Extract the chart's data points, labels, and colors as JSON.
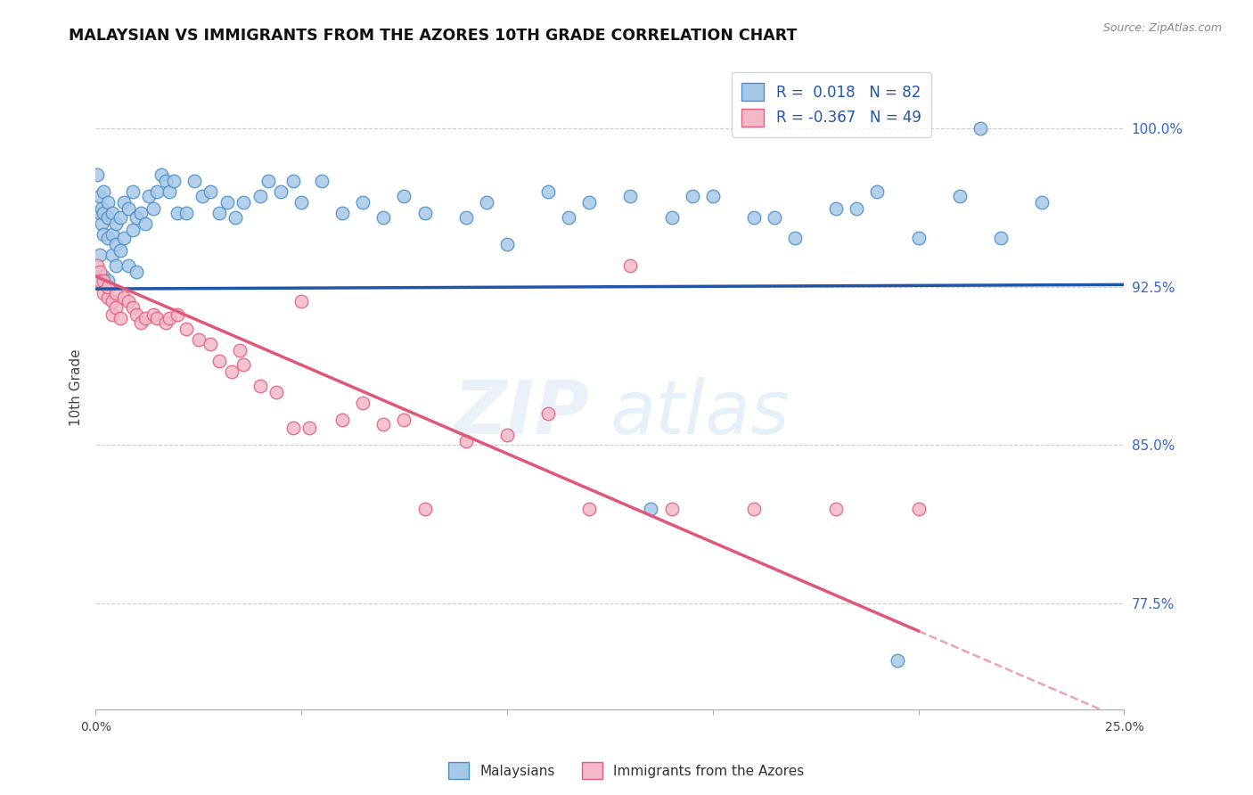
{
  "title": "MALAYSIAN VS IMMIGRANTS FROM THE AZORES 10TH GRADE CORRELATION CHART",
  "source": "Source: ZipAtlas.com",
  "ylabel": "10th Grade",
  "watermark_zip": "ZIP",
  "watermark_atlas": "atlas",
  "legend_malaysians": "Malaysians",
  "legend_azores": "Immigrants from the Azores",
  "R_malaysians": 0.018,
  "N_malaysians": 82,
  "R_azores": -0.367,
  "N_azores": 49,
  "blue_fill": "#a8c8e8",
  "blue_edge": "#4a90c8",
  "pink_fill": "#f4b8c8",
  "pink_edge": "#e06080",
  "line_blue_color": "#2255aa",
  "line_pink_color": "#e05878",
  "ytick_vals": [
    0.775,
    0.85,
    0.925,
    1.0
  ],
  "ytick_labels": [
    "77.5%",
    "85.0%",
    "92.5%",
    "100.0%"
  ],
  "xlim": [
    0.0,
    0.25
  ],
  "ylim": [
    0.725,
    1.03
  ],
  "xtick_vals": [
    0.0,
    0.05,
    0.1,
    0.15,
    0.2,
    0.25
  ],
  "xtick_labels": [
    "0.0%",
    "",
    "",
    "",
    "",
    "25.0%"
  ],
  "malaysians_x": [
    0.0005,
    0.001,
    0.001,
    0.001,
    0.0015,
    0.0015,
    0.002,
    0.002,
    0.002,
    0.002,
    0.003,
    0.003,
    0.003,
    0.003,
    0.004,
    0.004,
    0.004,
    0.005,
    0.005,
    0.005,
    0.006,
    0.006,
    0.007,
    0.007,
    0.008,
    0.008,
    0.009,
    0.009,
    0.01,
    0.01,
    0.011,
    0.012,
    0.013,
    0.014,
    0.015,
    0.016,
    0.017,
    0.018,
    0.019,
    0.02,
    0.022,
    0.024,
    0.026,
    0.028,
    0.03,
    0.032,
    0.034,
    0.036,
    0.04,
    0.042,
    0.045,
    0.048,
    0.05,
    0.055,
    0.06,
    0.065,
    0.07,
    0.075,
    0.08,
    0.09,
    0.095,
    0.1,
    0.11,
    0.12,
    0.13,
    0.14,
    0.15,
    0.16,
    0.17,
    0.18,
    0.19,
    0.2,
    0.21,
    0.22,
    0.23,
    0.115,
    0.135,
    0.145,
    0.165,
    0.185,
    0.195,
    0.215
  ],
  "malaysians_y": [
    0.978,
    0.968,
    0.96,
    0.94,
    0.962,
    0.955,
    0.97,
    0.96,
    0.95,
    0.93,
    0.965,
    0.958,
    0.948,
    0.928,
    0.96,
    0.94,
    0.95,
    0.955,
    0.945,
    0.935,
    0.958,
    0.942,
    0.965,
    0.948,
    0.962,
    0.935,
    0.97,
    0.952,
    0.958,
    0.932,
    0.96,
    0.955,
    0.968,
    0.962,
    0.97,
    0.978,
    0.975,
    0.97,
    0.975,
    0.96,
    0.96,
    0.975,
    0.968,
    0.97,
    0.96,
    0.965,
    0.958,
    0.965,
    0.968,
    0.975,
    0.97,
    0.975,
    0.965,
    0.975,
    0.96,
    0.965,
    0.958,
    0.968,
    0.96,
    0.958,
    0.965,
    0.945,
    0.97,
    0.965,
    0.968,
    0.958,
    0.968,
    0.958,
    0.948,
    0.962,
    0.97,
    0.948,
    0.968,
    0.948,
    0.965,
    0.958,
    0.82,
    0.968,
    0.958,
    0.962,
    0.748,
    1.0
  ],
  "azores_x": [
    0.0005,
    0.001,
    0.001,
    0.002,
    0.002,
    0.003,
    0.003,
    0.004,
    0.004,
    0.005,
    0.005,
    0.006,
    0.007,
    0.008,
    0.009,
    0.01,
    0.011,
    0.012,
    0.014,
    0.015,
    0.017,
    0.018,
    0.02,
    0.022,
    0.025,
    0.028,
    0.03,
    0.033,
    0.036,
    0.04,
    0.044,
    0.048,
    0.052,
    0.06,
    0.065,
    0.07,
    0.075,
    0.08,
    0.09,
    0.1,
    0.11,
    0.12,
    0.14,
    0.16,
    0.18,
    0.2,
    0.05,
    0.035,
    0.13
  ],
  "azores_y": [
    0.935,
    0.932,
    0.928,
    0.928,
    0.922,
    0.92,
    0.925,
    0.918,
    0.912,
    0.922,
    0.915,
    0.91,
    0.92,
    0.918,
    0.915,
    0.912,
    0.908,
    0.91,
    0.912,
    0.91,
    0.908,
    0.91,
    0.912,
    0.905,
    0.9,
    0.898,
    0.89,
    0.885,
    0.888,
    0.878,
    0.875,
    0.858,
    0.858,
    0.862,
    0.87,
    0.86,
    0.862,
    0.82,
    0.852,
    0.855,
    0.865,
    0.82,
    0.82,
    0.82,
    0.82,
    0.82,
    0.918,
    0.895,
    0.935
  ],
  "blue_line_x0": 0.0,
  "blue_line_x1": 0.25,
  "blue_line_y0": 0.924,
  "blue_line_y1": 0.926,
  "pink_line_x0": 0.0,
  "pink_line_x1": 0.25,
  "pink_line_y0": 0.93,
  "pink_line_y1": 0.72
}
